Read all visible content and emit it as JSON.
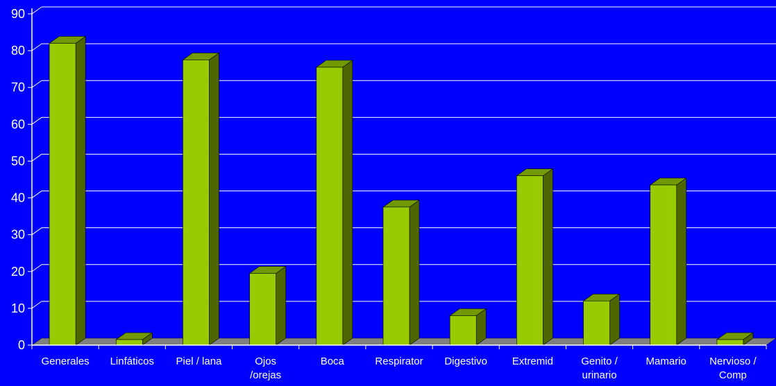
{
  "chart_data": {
    "type": "bar",
    "title": "",
    "xlabel": "",
    "ylabel": "",
    "categories": [
      [
        "Generales"
      ],
      [
        "Linfáticos"
      ],
      [
        "Piel / lana"
      ],
      [
        "Ojos",
        "/orejas"
      ],
      [
        "Boca"
      ],
      [
        "Respirator"
      ],
      [
        "Digestivo"
      ],
      [
        "Extremid"
      ],
      [
        "Genito /",
        "urinario"
      ],
      [
        "Mamario"
      ],
      [
        "Nervioso /",
        "Comp"
      ]
    ],
    "values": [
      82,
      1.5,
      77.5,
      19.5,
      75.5,
      37.5,
      8,
      46,
      12,
      43.5,
      1.5
    ],
    "ylim": [
      0,
      90
    ],
    "yticks": [
      "0",
      "10",
      "20",
      "30",
      "40",
      "50",
      "60",
      "70",
      "80",
      "90"
    ],
    "grid": true,
    "style": "3d-column",
    "colors": {
      "background": "#0000ff",
      "bar_front": "#99cc00",
      "bar_side": "#4d6600",
      "bar_top": "#739900",
      "floor": "#808080",
      "gridline": "#ffffff",
      "text": "#ffffff"
    }
  }
}
